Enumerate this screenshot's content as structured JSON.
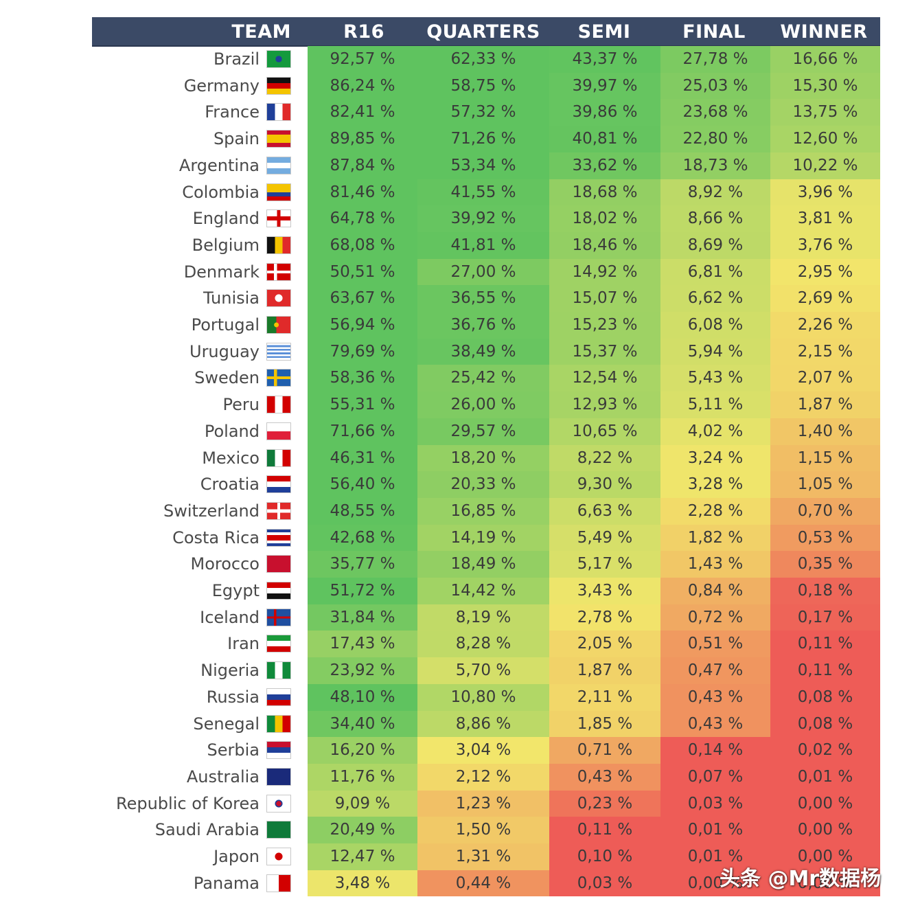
{
  "watermark": "头条 @Mr数据杨",
  "chart_data": {
    "type": "table",
    "columns": [
      "TEAM",
      "R16",
      "QUARTERS",
      "SEMI",
      "FINAL",
      "WINNER"
    ],
    "unit": "%",
    "color_scale": {
      "high": "#5fc35f",
      "mid": "#f2e66b",
      "low": "#ee5c57"
    },
    "rows": [
      {
        "team": "Brazil",
        "values": [
          92.57,
          62.33,
          43.37,
          27.78,
          16.66
        ]
      },
      {
        "team": "Germany",
        "values": [
          86.24,
          58.75,
          39.97,
          25.03,
          15.3
        ]
      },
      {
        "team": "France",
        "values": [
          82.41,
          57.32,
          39.86,
          23.68,
          13.75
        ]
      },
      {
        "team": "Spain",
        "values": [
          89.85,
          71.26,
          40.81,
          22.8,
          12.6
        ]
      },
      {
        "team": "Argentina",
        "values": [
          87.84,
          53.34,
          33.62,
          18.73,
          10.22
        ]
      },
      {
        "team": "Colombia",
        "values": [
          81.46,
          41.55,
          18.68,
          8.92,
          3.96
        ]
      },
      {
        "team": "England",
        "values": [
          64.78,
          39.92,
          18.02,
          8.66,
          3.81
        ]
      },
      {
        "team": "Belgium",
        "values": [
          68.08,
          41.81,
          18.46,
          8.69,
          3.76
        ]
      },
      {
        "team": "Denmark",
        "values": [
          50.51,
          27.0,
          14.92,
          6.81,
          2.95
        ]
      },
      {
        "team": "Tunisia",
        "values": [
          63.67,
          36.55,
          15.07,
          6.62,
          2.69
        ]
      },
      {
        "team": "Portugal",
        "values": [
          56.94,
          36.76,
          15.23,
          6.08,
          2.26
        ]
      },
      {
        "team": "Uruguay",
        "values": [
          79.69,
          38.49,
          15.37,
          5.94,
          2.15
        ]
      },
      {
        "team": "Sweden",
        "values": [
          58.36,
          25.42,
          12.54,
          5.43,
          2.07
        ]
      },
      {
        "team": "Peru",
        "values": [
          55.31,
          26.0,
          12.93,
          5.11,
          1.87
        ]
      },
      {
        "team": "Poland",
        "values": [
          71.66,
          29.57,
          10.65,
          4.02,
          1.4
        ]
      },
      {
        "team": "Mexico",
        "values": [
          46.31,
          18.2,
          8.22,
          3.24,
          1.15
        ]
      },
      {
        "team": "Croatia",
        "values": [
          56.4,
          20.33,
          9.3,
          3.28,
          1.05
        ]
      },
      {
        "team": "Switzerland",
        "values": [
          48.55,
          16.85,
          6.63,
          2.28,
          0.7
        ]
      },
      {
        "team": "Costa Rica",
        "values": [
          42.68,
          14.19,
          5.49,
          1.82,
          0.53
        ]
      },
      {
        "team": "Morocco",
        "values": [
          35.77,
          18.49,
          5.17,
          1.43,
          0.35
        ]
      },
      {
        "team": "Egypt",
        "values": [
          51.72,
          14.42,
          3.43,
          0.84,
          0.18
        ]
      },
      {
        "team": "Iceland",
        "values": [
          31.84,
          8.19,
          2.78,
          0.72,
          0.17
        ]
      },
      {
        "team": "Iran",
        "values": [
          17.43,
          8.28,
          2.05,
          0.51,
          0.11
        ]
      },
      {
        "team": "Nigeria",
        "values": [
          23.92,
          5.7,
          1.87,
          0.47,
          0.11
        ]
      },
      {
        "team": "Russia",
        "values": [
          48.1,
          10.8,
          2.11,
          0.43,
          0.08
        ]
      },
      {
        "team": "Senegal",
        "values": [
          34.4,
          8.86,
          1.85,
          0.43,
          0.08
        ]
      },
      {
        "team": "Serbia",
        "values": [
          16.2,
          3.04,
          0.71,
          0.14,
          0.02
        ]
      },
      {
        "team": "Australia",
        "values": [
          11.76,
          2.12,
          0.43,
          0.07,
          0.01
        ]
      },
      {
        "team": "Republic of Korea",
        "values": [
          9.09,
          1.23,
          0.23,
          0.03,
          0.0
        ]
      },
      {
        "team": "Saudi Arabia",
        "values": [
          20.49,
          1.5,
          0.11,
          0.01,
          0.0
        ]
      },
      {
        "team": "Japon",
        "values": [
          12.47,
          1.31,
          0.1,
          0.01,
          0.0
        ]
      },
      {
        "team": "Panama",
        "values": [
          3.48,
          0.44,
          0.03,
          0.0,
          0.0
        ]
      }
    ]
  },
  "flags": {
    "Brazil": "brazil-flag-icon",
    "Germany": "germany-flag-icon",
    "France": "france-flag-icon",
    "Spain": "spain-flag-icon",
    "Argentina": "argentina-flag-icon",
    "Colombia": "colombia-flag-icon",
    "England": "england-flag-icon",
    "Belgium": "belgium-flag-icon",
    "Denmark": "denmark-flag-icon",
    "Tunisia": "tunisia-flag-icon",
    "Portugal": "portugal-flag-icon",
    "Uruguay": "uruguay-flag-icon",
    "Sweden": "sweden-flag-icon",
    "Peru": "peru-flag-icon",
    "Poland": "poland-flag-icon",
    "Mexico": "mexico-flag-icon",
    "Croatia": "croatia-flag-icon",
    "Switzerland": "switzerland-flag-icon",
    "Costa Rica": "costa-rica-flag-icon",
    "Morocco": "morocco-flag-icon",
    "Egypt": "egypt-flag-icon",
    "Iceland": "iceland-flag-icon",
    "Iran": "iran-flag-icon",
    "Nigeria": "nigeria-flag-icon",
    "Russia": "russia-flag-icon",
    "Senegal": "senegal-flag-icon",
    "Serbia": "serbia-flag-icon",
    "Australia": "australia-flag-icon",
    "Republic of Korea": "korea-flag-icon",
    "Saudi Arabia": "saudi-arabia-flag-icon",
    "Japon": "japan-flag-icon",
    "Panama": "panama-flag-icon"
  }
}
